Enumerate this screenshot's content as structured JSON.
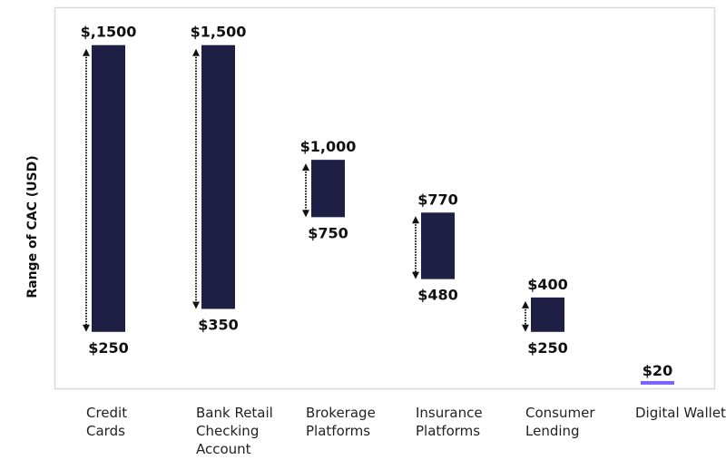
{
  "chart_data": {
    "type": "bar",
    "subtype": "floating-range",
    "ylabel": "Range of CAC (USD)",
    "xlabel": "",
    "ylim": [
      0,
      1665
    ],
    "grid": false,
    "categories": [
      {
        "label": [
          "Credit",
          "Cards"
        ],
        "low": 250,
        "high": 1500,
        "low_label": "$250",
        "high_label": "$,1500",
        "arrow": true
      },
      {
        "label": [
          "Bank Retail",
          "Checking",
          "Account"
        ],
        "low": 350,
        "high": 1500,
        "low_label": "$350",
        "high_label": "$1,500",
        "arrow": true
      },
      {
        "label": [
          "Brokerage",
          "Platforms"
        ],
        "low": 750,
        "high": 1000,
        "low_label": "$750",
        "high_label": "$1,000",
        "arrow": true
      },
      {
        "label": [
          "Insurance",
          "Platforms"
        ],
        "low": 480,
        "high": 770,
        "low_label": "$480",
        "high_label": "$770",
        "arrow": true
      },
      {
        "label": [
          "Consumer",
          "Lending"
        ],
        "low": 250,
        "high": 400,
        "low_label": "$250",
        "high_label": "$400",
        "arrow": true
      },
      {
        "label": [
          "Digital Wallet"
        ],
        "low": 20,
        "high": 20,
        "low_label": "",
        "high_label": "$20",
        "arrow": false,
        "highlight": true
      }
    ],
    "colors": {
      "bar": "#1f1f45",
      "highlight": "#7b61ff",
      "frame": "#d9d9d9"
    }
  }
}
